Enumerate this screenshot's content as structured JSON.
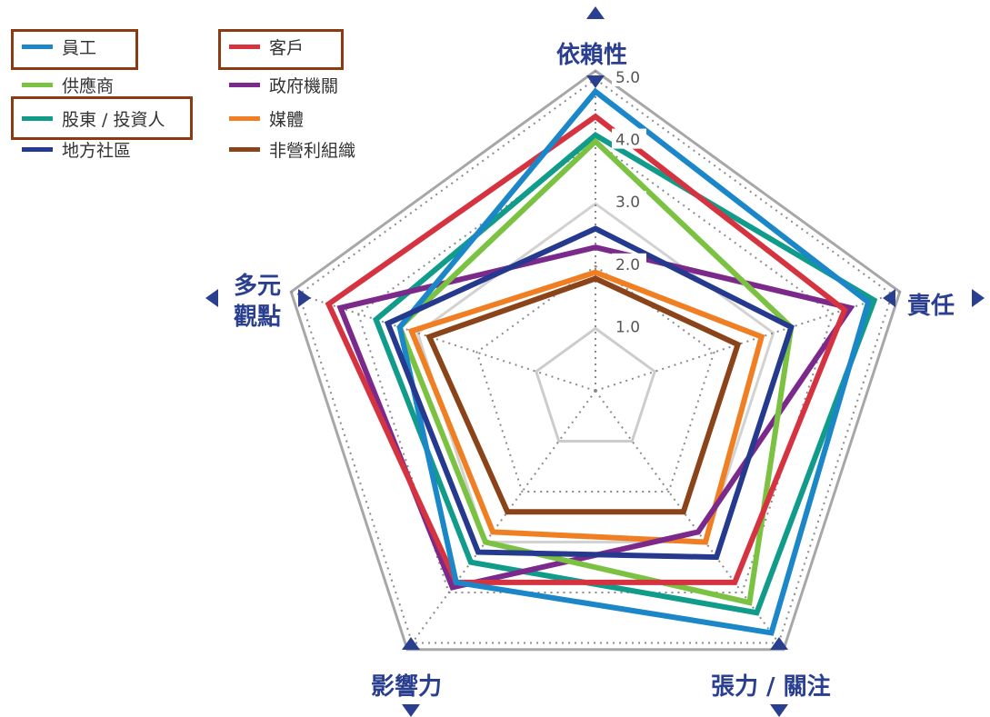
{
  "chart_data": {
    "type": "radar",
    "title": "",
    "axes": [
      "依賴性",
      "責任",
      "張力 / 關注",
      "影響力",
      "多元觀點"
    ],
    "scale": {
      "min": 0,
      "max": 5.0,
      "ticks": [
        "1.0",
        "2.0",
        "3.0",
        "4.0",
        "5.0"
      ]
    },
    "series": [
      {
        "name": "員工",
        "color": "#1b86c8",
        "values": [
          4.8,
          4.6,
          4.8,
          3.8,
          3.3
        ],
        "highlighted": true
      },
      {
        "name": "客戶",
        "color": "#d63340",
        "values": [
          4.4,
          4.2,
          3.8,
          3.8,
          4.5
        ],
        "highlighted": true
      },
      {
        "name": "供應商",
        "color": "#7cc242",
        "values": [
          4.0,
          3.3,
          4.2,
          3.0,
          3.3
        ],
        "highlighted": false
      },
      {
        "name": "政府機關",
        "color": "#7b2a8b",
        "values": [
          2.3,
          4.3,
          2.8,
          3.9,
          4.3
        ],
        "highlighted": false
      },
      {
        "name": "股東 / 投資人",
        "color": "#119b8a",
        "values": [
          4.1,
          4.7,
          4.4,
          3.4,
          3.7
        ],
        "highlighted": true
      },
      {
        "name": "媒體",
        "color": "#f07f24",
        "values": [
          1.9,
          2.8,
          3.0,
          2.8,
          3.1
        ],
        "highlighted": false
      },
      {
        "name": "地方社區",
        "color": "#253a8e",
        "values": [
          2.6,
          3.3,
          3.3,
          3.2,
          3.5
        ],
        "highlighted": false
      },
      {
        "name": "非營利組織",
        "color": "#8b4419",
        "values": [
          1.8,
          2.4,
          2.4,
          2.4,
          2.8
        ],
        "highlighted": false
      }
    ],
    "legend": "top-left",
    "grid": true
  },
  "legend_items": [
    "員工",
    "客戶",
    "供應商",
    "政府機關",
    "股東 / 投資人",
    "媒體",
    "地方社區",
    "非營利組織"
  ],
  "legend_colors": [
    "#1b86c8",
    "#d63340",
    "#7cc242",
    "#7b2a8b",
    "#119b8a",
    "#f07f24",
    "#253a8e",
    "#8b4419"
  ],
  "axis_labels": {
    "top": "依賴性",
    "right": "責任",
    "bottom_right": "張力 / 關注",
    "bottom_left": "影響力",
    "left": "多元觀點"
  },
  "axis_marker_color": "#2a3f8f",
  "highlight_box_color": "#8b3a12"
}
